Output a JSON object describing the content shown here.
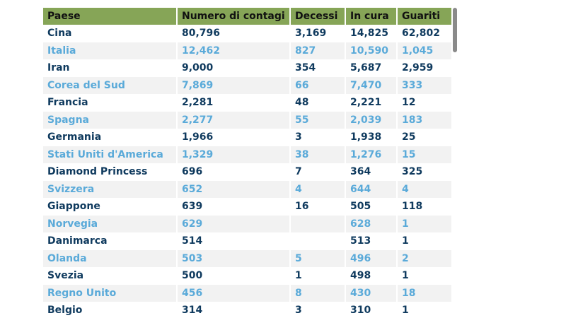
{
  "table": {
    "headers": [
      "Paese",
      "Numero di contagi",
      "Decessi",
      "In cura",
      "Guariti"
    ],
    "rows": [
      [
        "Cina",
        "80,796",
        "3,169",
        "14,825",
        "62,802"
      ],
      [
        "Italia",
        "12,462",
        "827",
        "10,590",
        "1,045"
      ],
      [
        "Iran",
        "9,000",
        "354",
        "5,687",
        "2,959"
      ],
      [
        "Corea del Sud",
        "7,869",
        "66",
        "7,470",
        "333"
      ],
      [
        "Francia",
        "2,281",
        "48",
        "2,221",
        "12"
      ],
      [
        "Spagna",
        "2,277",
        "55",
        "2,039",
        "183"
      ],
      [
        "Germania",
        "1,966",
        "3",
        "1,938",
        "25"
      ],
      [
        "Stati Uniti d'America",
        "1,329",
        "38",
        "1,276",
        "15"
      ],
      [
        "Diamond Princess",
        "696",
        "7",
        "364",
        "325"
      ],
      [
        "Svizzera",
        "652",
        "4",
        "644",
        "4"
      ],
      [
        "Giappone",
        "639",
        "16",
        "505",
        "118"
      ],
      [
        "Norvegia",
        "629",
        "",
        "628",
        "1"
      ],
      [
        "Danimarca",
        "514",
        "",
        "513",
        "1"
      ],
      [
        "Olanda",
        "503",
        "5",
        "496",
        "2"
      ],
      [
        "Svezia",
        "500",
        "1",
        "498",
        "1"
      ],
      [
        "Regno Unito",
        "456",
        "8",
        "430",
        "18"
      ],
      [
        "Belgio",
        "314",
        "3",
        "310",
        "1"
      ]
    ]
  },
  "colors": {
    "header_bg": "#86a557",
    "row_text_dark": "#0f3a5e",
    "row_text_light": "#5aaad9",
    "row_bg_alt": "#f2f2f2"
  },
  "scroll": {
    "position_fraction": 0.0
  }
}
